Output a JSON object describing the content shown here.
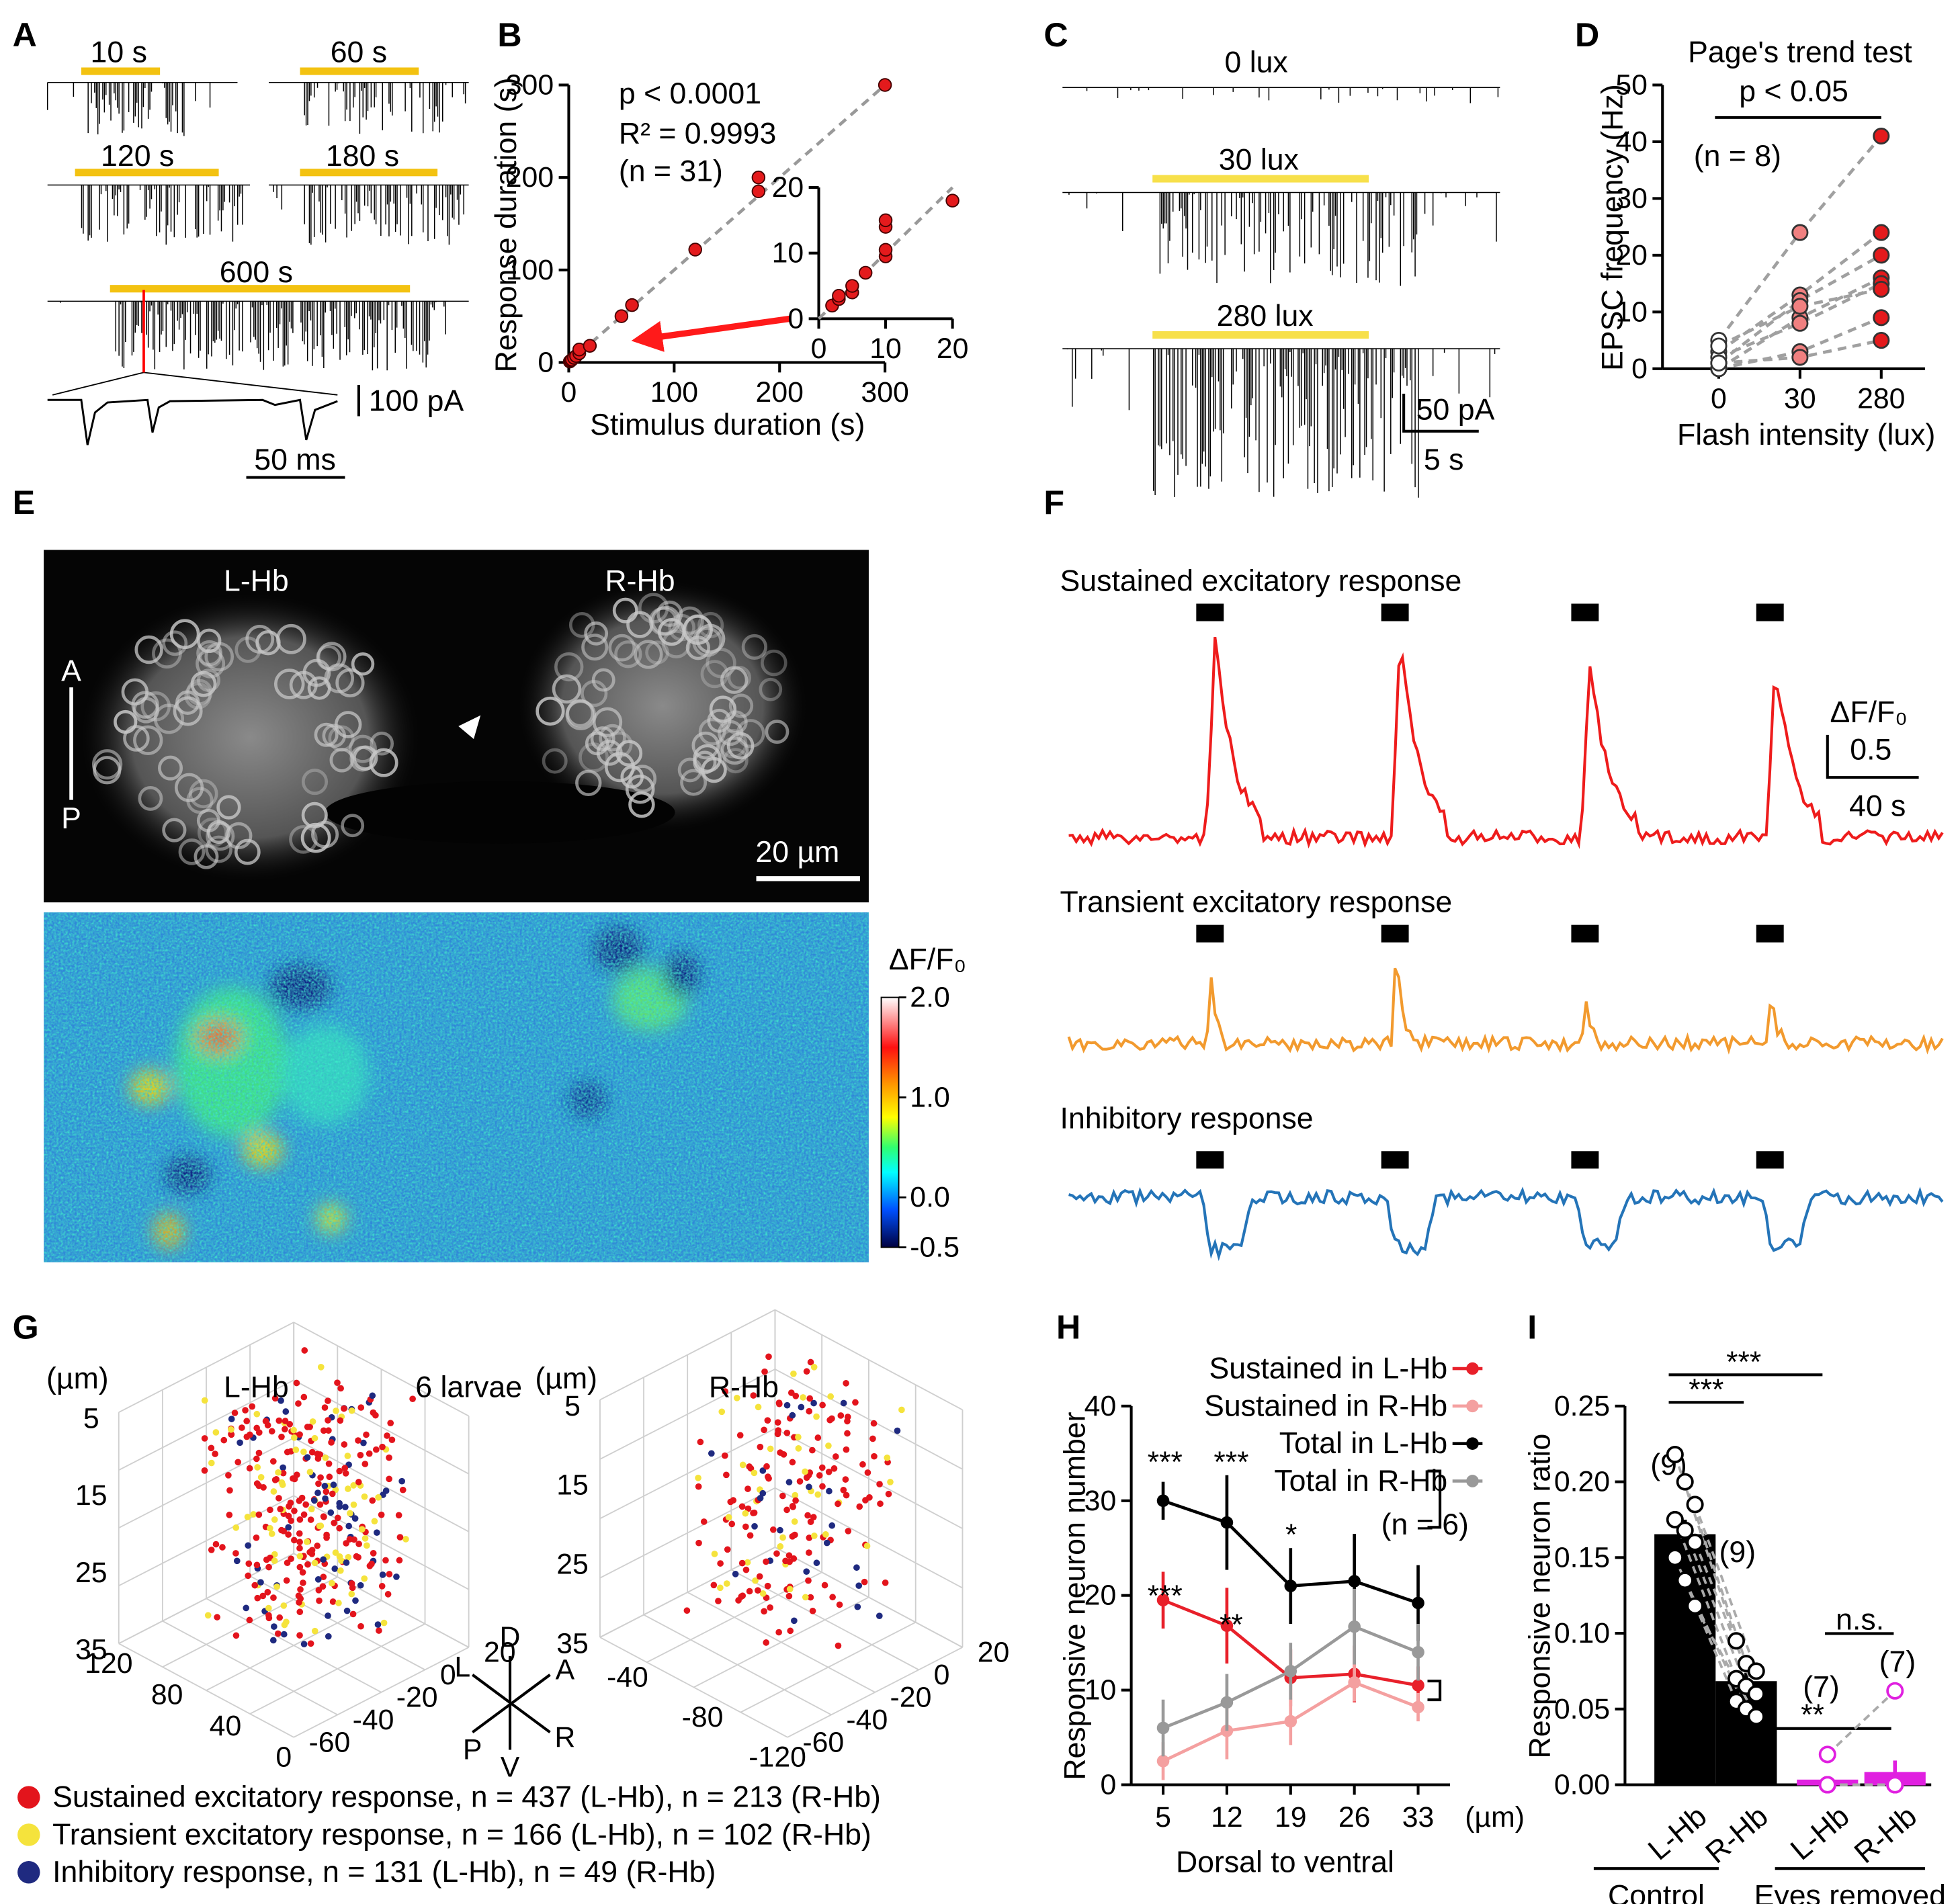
{
  "panel_letters": [
    "A",
    "B",
    "C",
    "D",
    "E",
    "F",
    "G",
    "H",
    "I"
  ],
  "panel_a": {
    "stimulus_color": "#f3c211",
    "trace_color": "#000000",
    "marker_color": "#ff0000",
    "traces": [
      {
        "label": "10 s"
      },
      {
        "label": "60 s"
      },
      {
        "label": "120 s"
      },
      {
        "label": "180 s"
      },
      {
        "label": "600 s"
      }
    ],
    "scale_y": "100 pA",
    "scale_x": "50 ms"
  },
  "panel_c": {
    "stimulus_color": "#f7e04a",
    "traces": [
      {
        "label": "0 lux"
      },
      {
        "label": "30 lux"
      },
      {
        "label": "280 lux"
      }
    ],
    "scale_y": "50 pA",
    "scale_x": "5 s"
  },
  "panel_e": {
    "left": "L-Hb",
    "right": "R-Hb",
    "anterior": "A",
    "posterior": "P",
    "scale": "20 µm",
    "colorbar": {
      "title": "ΔF/F₀",
      "lim": [
        -0.5,
        2
      ],
      "ticks": [
        {
          "value": 2,
          "label": "2.0"
        },
        {
          "value": 1,
          "label": "1.0"
        },
        {
          "value": 0,
          "label": "0.0"
        },
        {
          "value": -0.5,
          "label": "-0.5"
        }
      ]
    }
  },
  "panel_f": {
    "traces": [
      {
        "title": "Sustained excitatory response",
        "color": "#ee1c1c"
      },
      {
        "title": "Transient excitatory response",
        "color": "#f29a2e"
      },
      {
        "title": "Inhibitory response",
        "color": "#2474b8"
      }
    ],
    "scale_y_title": "ΔF/F₀",
    "scale_y": "0.5",
    "scale_x": "40 s"
  },
  "panel_g": {
    "title": "6 larvae",
    "unit": "(µm)",
    "plots": [
      {
        "title": "L-Hb",
        "z_ticks": [
          5,
          15,
          25,
          35
        ],
        "x_ticks": [
          120,
          80,
          40,
          0
        ],
        "y_ticks": [
          20,
          0,
          -20,
          -40,
          -60
        ]
      },
      {
        "title": "R-Hb",
        "z_ticks": [
          5,
          15,
          25,
          35
        ],
        "x_ticks": [
          -40,
          -80,
          -120
        ],
        "y_ticks": [
          20,
          0,
          -20,
          -40,
          -60
        ]
      }
    ],
    "directions": [
      "D",
      "A",
      "L",
      "R",
      "P",
      "V"
    ],
    "legend": [
      {
        "label": "Sustained excitatory response, n = 437 (L-Hb), n = 213 (R-Hb)",
        "color": "#e3141c"
      },
      {
        "label": "Transient excitatory response, n = 166 (L-Hb), n = 102 (R-Hb)",
        "color": "#f5e33c"
      },
      {
        "label": "Inhibitory response, n = 131 (L-Hb), n = 49 (R-Hb)",
        "color": "#1f2a80"
      }
    ]
  },
  "chart_data": [
    {
      "type": "scatter",
      "xlabel": "Stimulus duration (s)",
      "ylabel": "Response duration (s)",
      "annotations": [
        "p < 0.0001",
        "R² = 0.9993",
        "(n = 31)"
      ],
      "x": [
        1,
        2,
        3,
        5,
        7,
        10,
        10,
        20,
        50,
        60,
        120,
        180,
        180,
        300
      ],
      "values": [
        1,
        2,
        3,
        5,
        7,
        10,
        14,
        18,
        50,
        62,
        122,
        185,
        200,
        300
      ],
      "color": "#e41a1c",
      "xlim": [
        0,
        300
      ],
      "ylim": [
        0,
        300
      ],
      "xticks": [
        0,
        100,
        200,
        300
      ],
      "yticks": [
        0,
        100,
        200,
        300
      ]
    },
    {
      "type": "scatter",
      "x": [
        2,
        3,
        3,
        5,
        5,
        7,
        10,
        10,
        10,
        10,
        20
      ],
      "values": [
        2,
        3,
        3.5,
        4,
        5,
        7,
        9.5,
        10.5,
        14,
        15,
        18
      ],
      "color": "#e41a1c",
      "xlim": [
        0,
        20
      ],
      "ylim": [
        0,
        20
      ],
      "xticks": [
        0,
        10,
        20
      ],
      "yticks": [
        0,
        10,
        20
      ]
    },
    {
      "type": "paired",
      "title": "Page's trend test",
      "annotations": [
        "p < 0.05",
        "(n = 8)"
      ],
      "xlabel": "Flash intensity (lux)",
      "ylabel": "EPSC frequency (Hz)",
      "categories": [
        0,
        30,
        280
      ],
      "point_colors": [
        "#ffffff",
        "#f08080",
        "#e41a1c"
      ],
      "line_color": "#a0a0a0",
      "series": [
        {
          "values": [
            5,
            24,
            41
          ]
        },
        {
          "values": [
            3,
            13,
            24
          ]
        },
        {
          "values": [
            1,
            12,
            20
          ]
        },
        {
          "values": [
            0,
            9,
            16
          ]
        },
        {
          "values": [
            2,
            8,
            15
          ]
        },
        {
          "values": [
            0,
            3,
            9
          ]
        },
        {
          "values": [
            1,
            2,
            5
          ]
        },
        {
          "values": [
            4,
            11,
            14
          ]
        }
      ],
      "ylim": [
        0,
        50
      ],
      "yticks": [
        0,
        10,
        20,
        30,
        40,
        50
      ]
    },
    {
      "type": "line",
      "xlabel": "Dorsal to ventral",
      "x_unit": "(µm)",
      "ylabel": "Responsive neuron number",
      "annotations": [
        "(n = 6)"
      ],
      "significance": [
        "***",
        "***",
        "*",
        "***",
        "**"
      ],
      "categories": [
        5,
        12,
        19,
        26,
        33
      ],
      "series": [
        {
          "name": "Sustained in L-Hb",
          "color": "#e8202a",
          "values": [
            19.5,
            16.8,
            11.3,
            11.7,
            10.5
          ],
          "errors": [
            3,
            4,
            3,
            3,
            2
          ]
        },
        {
          "name": "Sustained in R-Hb",
          "color": "#f4a0a0",
          "values": [
            2.5,
            5.7,
            6.7,
            10.8,
            8.2
          ],
          "errors": [
            2,
            3,
            2.5,
            2,
            1.5
          ]
        },
        {
          "name": "Total in L-Hb",
          "color": "#000000",
          "values": [
            30,
            27.7,
            21,
            21.5,
            19.2
          ],
          "errors": [
            2,
            5,
            4,
            5,
            4
          ]
        },
        {
          "name": "Total in R-Hb",
          "color": "#999999",
          "values": [
            6,
            8.7,
            12,
            16.7,
            14
          ],
          "errors": [
            3,
            3,
            3,
            4,
            3
          ]
        }
      ],
      "ylim": [
        0,
        40
      ],
      "yticks": [
        0,
        10,
        20,
        30,
        40
      ]
    },
    {
      "type": "bar",
      "ylabel": "Responsive neuron ratio",
      "categories": [
        "L-Hb",
        "R-Hb",
        "L-Hb",
        "R-Hb"
      ],
      "groups": [
        "Control",
        "Eyes removed"
      ],
      "values": [
        0.165,
        0.068,
        0.003,
        0.008
      ],
      "errors": [
        0.01,
        0.006,
        0.002,
        0.008
      ],
      "colors": [
        "#000000",
        "#000000",
        "#e020e0",
        "#e020e0"
      ],
      "point_colors": [
        "#000000",
        "#000000",
        "#e020e0",
        "#e020e0"
      ],
      "n_labels": [
        "(9)",
        "(9)",
        "(7)",
        "(7)"
      ],
      "significance": [
        "***",
        "***",
        "**",
        "n.s."
      ],
      "points": [
        [
          0.218,
          0.2,
          0.185,
          0.175,
          0.168,
          0.16,
          0.15,
          0.135,
          0.118
        ],
        [
          0.095,
          0.08,
          0.075,
          0.07,
          0.065,
          0.06,
          0.055,
          0.05,
          0.045
        ],
        [
          0.02,
          0,
          0,
          0,
          0,
          0,
          0
        ],
        [
          0.062,
          0,
          0,
          0,
          0,
          0,
          0
        ]
      ],
      "ylim": [
        0,
        0.25
      ],
      "yticks": [
        {
          "value": 0,
          "label": "0.00"
        },
        {
          "value": 0.05,
          "label": "0.05"
        },
        {
          "value": 0.1,
          "label": "0.10"
        },
        {
          "value": 0.15,
          "label": "0.15"
        },
        {
          "value": 0.2,
          "label": "0.20"
        },
        {
          "value": 0.25,
          "label": "0.25"
        }
      ]
    }
  ]
}
